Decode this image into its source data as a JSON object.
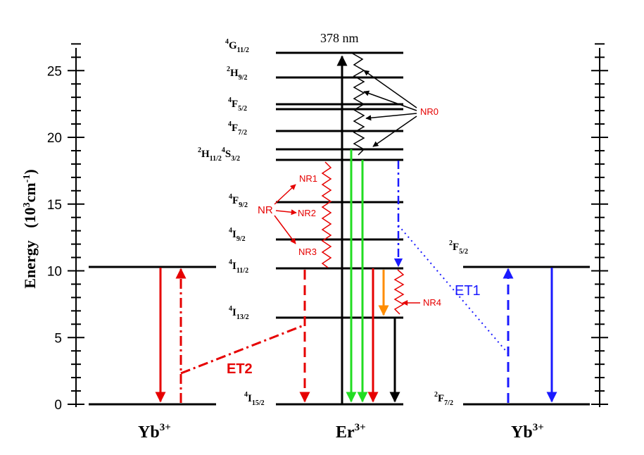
{
  "y_axis": {
    "title": "Energy",
    "unit_prefix": "(10",
    "unit_exp": "3",
    "unit_suffix": "cm",
    "unit_suffix_exp": "-1",
    "unit_close": ")",
    "ticks": [
      "0",
      "5",
      "10",
      "15",
      "20",
      "25"
    ]
  },
  "ions": {
    "left": {
      "name": "Yb",
      "charge": "3+"
    },
    "center": {
      "name": "Er",
      "charge": "3+"
    },
    "right": {
      "name": "Yb",
      "charge": "3+"
    }
  },
  "er_levels": {
    "g11": {
      "mult": "4",
      "term": "G",
      "j": "11/2"
    },
    "h9": {
      "mult": "2",
      "term": "H",
      "j": "9/2"
    },
    "f5": {
      "mult": "4",
      "term": "F",
      "j": "5/2"
    },
    "f7": {
      "mult": "4",
      "term": "F",
      "j": "7/2"
    },
    "h11": {
      "mult": "2",
      "term": "H",
      "j": "11/2"
    },
    "s3": {
      "mult": "4",
      "term": "S",
      "j": "3/2"
    },
    "f9": {
      "mult": "4",
      "term": "F",
      "j": "9/2"
    },
    "i9": {
      "mult": "4",
      "term": "I",
      "j": "9/2"
    },
    "i11": {
      "mult": "4",
      "term": "I",
      "j": "11/2"
    },
    "i13": {
      "mult": "4",
      "term": "I",
      "j": "13/2"
    },
    "i15": {
      "mult": "4",
      "term": "I",
      "j": "15/2"
    }
  },
  "yb_levels": {
    "f5": {
      "mult": "2",
      "term": "F",
      "j": "5/2"
    },
    "f7": {
      "mult": "2",
      "term": "F",
      "j": "7/2"
    }
  },
  "annotations": {
    "wavelength": "378 nm",
    "nr0": "NR0",
    "nr": "NR",
    "nr1": "NR1",
    "nr2": "NR2",
    "nr3": "NR3",
    "nr4": "NR4",
    "et1": "ET1",
    "et2": "ET2"
  },
  "colors": {
    "black": "#000000",
    "red": "#e60000",
    "green": "#22dd22",
    "blue": "#1a1aff",
    "orange": "#ff8c00"
  }
}
